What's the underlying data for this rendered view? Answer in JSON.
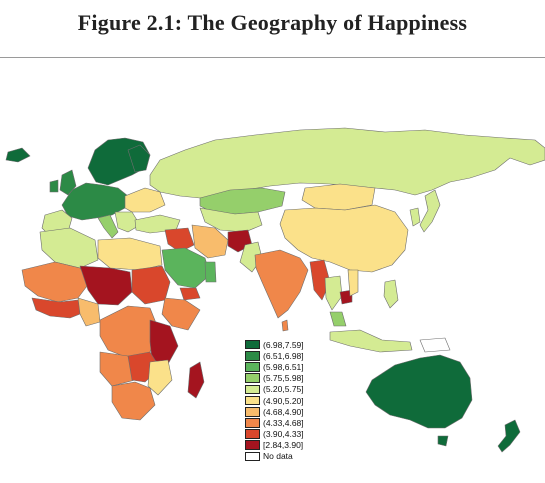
{
  "title": "Figure 2.1: The Geography of Happiness",
  "legend": {
    "items": [
      {
        "label": "(6.98,7.59]",
        "color": "#0f6b3a"
      },
      {
        "label": "(6.51,6.98]",
        "color": "#2c8a46"
      },
      {
        "label": "(5.98,6.51]",
        "color": "#5bb45c"
      },
      {
        "label": "(5.75,5.98]",
        "color": "#95cf6b"
      },
      {
        "label": "(5.20,5.75]",
        "color": "#d4eb93"
      },
      {
        "label": "(4.90,5.20]",
        "color": "#fbe18a"
      },
      {
        "label": "(4.68,4.90]",
        "color": "#f8bc6c"
      },
      {
        "label": "(4.33,4.68]",
        "color": "#f0874a"
      },
      {
        "label": "(3.90,4.33]",
        "color": "#d9472c"
      },
      {
        "label": "[2.84,3.90]",
        "color": "#a4141f"
      },
      {
        "label": "No data",
        "color": "#ffffff"
      }
    ]
  }
}
